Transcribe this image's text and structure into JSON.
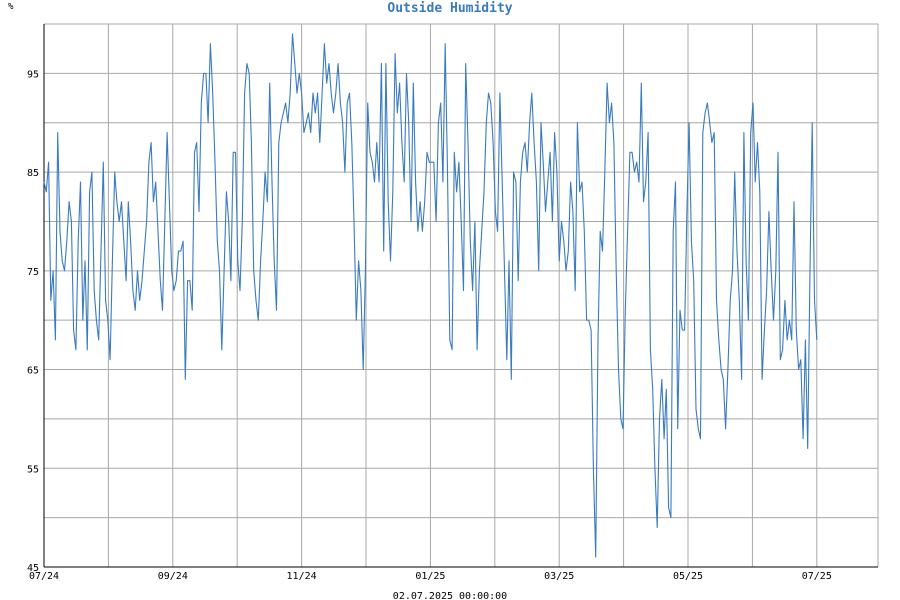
{
  "chart_data": {
    "type": "line",
    "title": "Outside Humidity",
    "unit_label": "%",
    "xlabel": "02.07.2025 00:00:00",
    "ylim": [
      45,
      100
    ],
    "yticks": [
      45,
      55,
      65,
      75,
      85,
      95
    ],
    "x_tick_labels": [
      "07/24",
      "09/24",
      "11/24",
      "01/25",
      "03/25",
      "05/25",
      "07/25"
    ],
    "grid": true,
    "series_color": "#3a7bbf",
    "series": [
      {
        "values": [
          84,
          83,
          86,
          72,
          75,
          68,
          89,
          79,
          76,
          75,
          78,
          82,
          80,
          69,
          67,
          78,
          84,
          70,
          76,
          67,
          83,
          85,
          73,
          70,
          68,
          77,
          86,
          72,
          70,
          66,
          76,
          85,
          82,
          80,
          82,
          78,
          74,
          82,
          78,
          73,
          71,
          75,
          72,
          74,
          77,
          80,
          86,
          88,
          82,
          84,
          79,
          74,
          71,
          80,
          89,
          82,
          75,
          73,
          74,
          77,
          77,
          78,
          64,
          74,
          74,
          71,
          87,
          88,
          81,
          92,
          95,
          95,
          90,
          98,
          93,
          86,
          78,
          75,
          67,
          75,
          83,
          80,
          74,
          87,
          87,
          76,
          73,
          80,
          93,
          96,
          95,
          88,
          75,
          72,
          70,
          76,
          80,
          85,
          82,
          94,
          84,
          76,
          71,
          88,
          90,
          91,
          92,
          90,
          93,
          99,
          96,
          93,
          95,
          93,
          89,
          90,
          91,
          89,
          93,
          91,
          93,
          88,
          93,
          98,
          94,
          96,
          93,
          91,
          93,
          96,
          92,
          90,
          85,
          92,
          93,
          88,
          80,
          70,
          76,
          73,
          65,
          75,
          92,
          87,
          86,
          84,
          88,
          84,
          96,
          77,
          96,
          82,
          76,
          83,
          97,
          91,
          94,
          88,
          84,
          95,
          90,
          80,
          94,
          84,
          79,
          82,
          79,
          82,
          87,
          86,
          86,
          86,
          80,
          90,
          92,
          84,
          98,
          85,
          68,
          67,
          87,
          83,
          86,
          80,
          73,
          96,
          88,
          78,
          73,
          80,
          67,
          75,
          79,
          83,
          90,
          93,
          92,
          88,
          81,
          79,
          93,
          84,
          75,
          66,
          76,
          64,
          85,
          84,
          74,
          84,
          87,
          88,
          85,
          90,
          93,
          88,
          84,
          75,
          90,
          86,
          81,
          84,
          87,
          80,
          89,
          85,
          76,
          80,
          78,
          75,
          77,
          84,
          81,
          73,
          90,
          83,
          84,
          79,
          70,
          70,
          69,
          55,
          46,
          68,
          79,
          77,
          85,
          94,
          90,
          92,
          88,
          75,
          65,
          60,
          59,
          71,
          79,
          87,
          87,
          85,
          86,
          84,
          94,
          82,
          84,
          89,
          67,
          63,
          55,
          49,
          60,
          64,
          58,
          63,
          51,
          50,
          79,
          84,
          59,
          71,
          69,
          69,
          81,
          90,
          78,
          74,
          61,
          59,
          58,
          89,
          91,
          92,
          90,
          88,
          89,
          72,
          68,
          65,
          64,
          59,
          65,
          72,
          75,
          85,
          77,
          72,
          64,
          89,
          76,
          70,
          89,
          92,
          84,
          88,
          83,
          64,
          69,
          73,
          81,
          75,
          70,
          75,
          87,
          66,
          67,
          72,
          68,
          70,
          68,
          82,
          69,
          65,
          66,
          58,
          68,
          57,
          75,
          90,
          72,
          68
        ]
      }
    ]
  }
}
